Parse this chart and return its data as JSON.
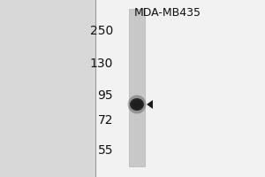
{
  "title": "MDA-MB435",
  "outer_bg": "#e8e8e8",
  "panel_bg": "#f0f0f0",
  "white_right_bg": "#f5f5f5",
  "lane_color": "#c0c0c0",
  "markers": [
    250,
    130,
    95,
    72,
    55
  ],
  "band_color": "#1a1a1a",
  "arrow_color": "#1a1a1a",
  "font_size_markers": 10,
  "font_size_title": 9,
  "figsize": [
    3.0,
    2.0
  ],
  "dpi": 100
}
